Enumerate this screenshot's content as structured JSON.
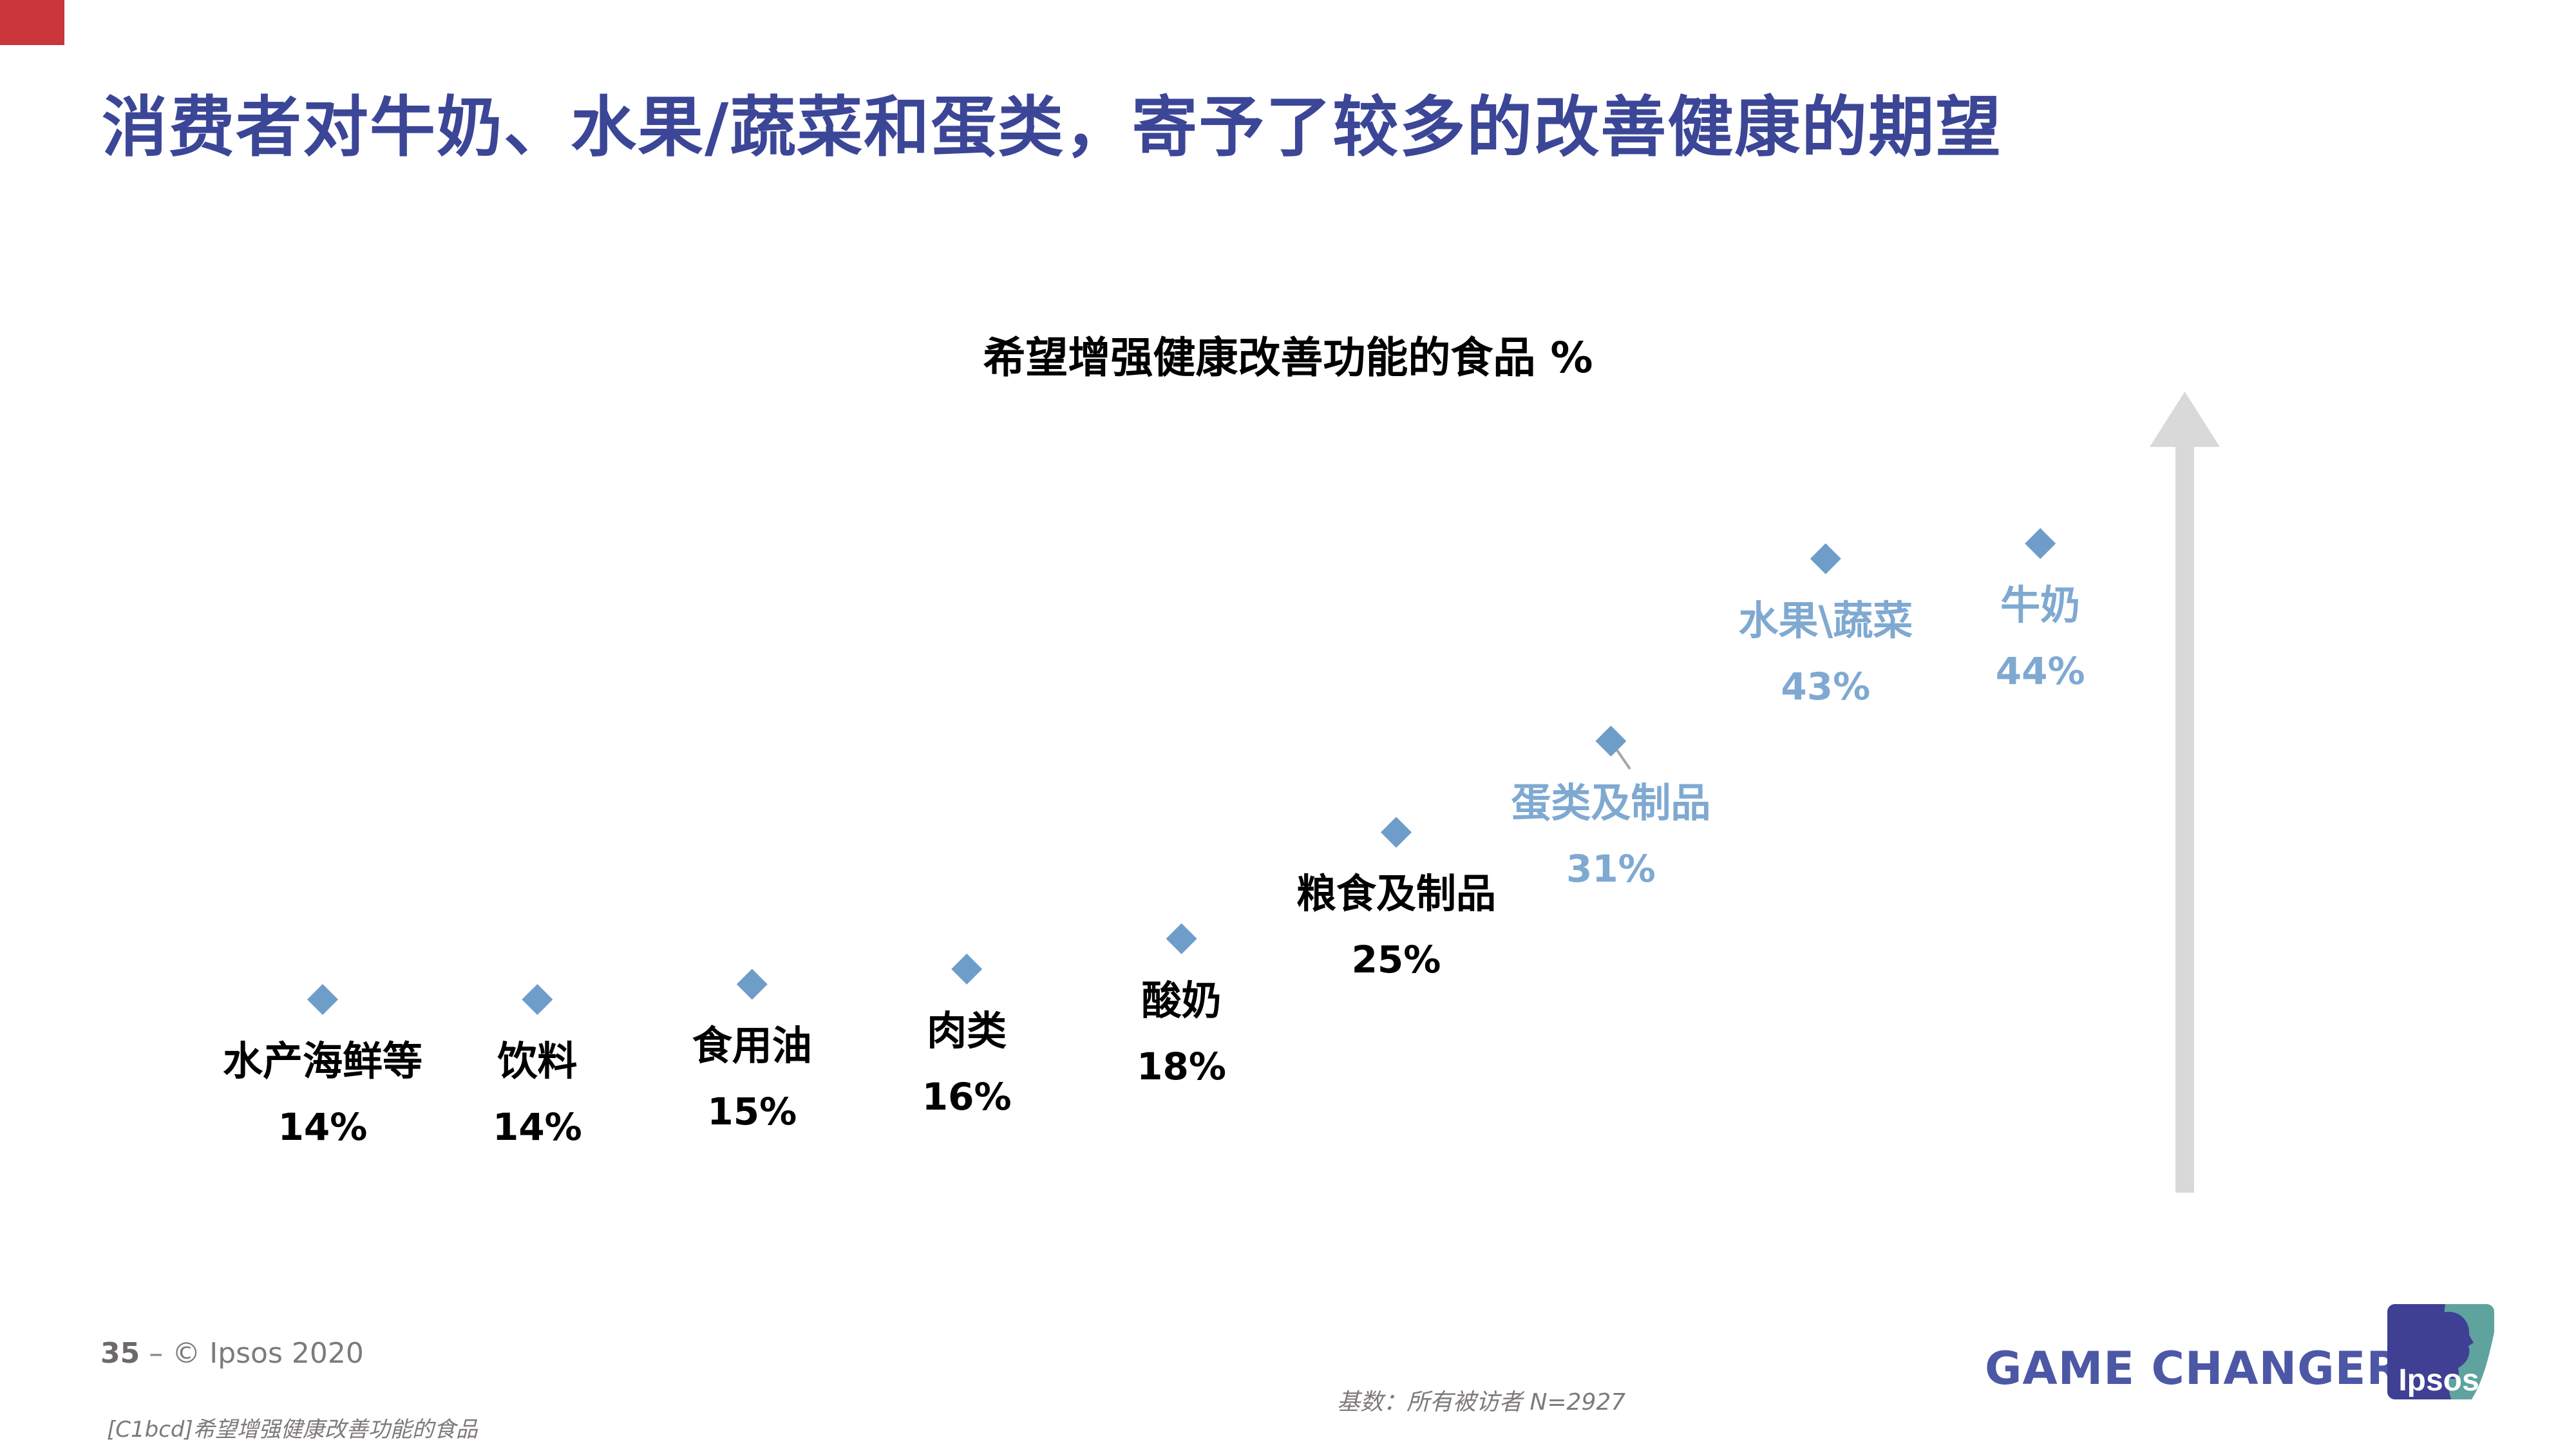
{
  "slide": {
    "title": "消费者对牛奶、水果/蔬菜和蛋类，寄予了较多的改善健康的期望",
    "title_color": "#3B4697",
    "corner_accent_color": "#C9363C"
  },
  "chart_data": {
    "type": "scatter",
    "title": "希望增强健康改善功能的食品 %",
    "value_suffix": "%",
    "marker": "diamond",
    "marker_color": "#6F9DC9",
    "highlight_text_color": "#7FA9D1",
    "normal_text_color": "#000000",
    "arrow_color": "#D9D9D9",
    "leader_line_color": "#A6A6A6",
    "legend": "none",
    "grid": false,
    "points": [
      {
        "label": "水产海鲜等",
        "value": 14,
        "highlight": false
      },
      {
        "label": "饮料",
        "value": 14,
        "highlight": false
      },
      {
        "label": "食用油",
        "value": 15,
        "highlight": false
      },
      {
        "label": "肉类",
        "value": 16,
        "highlight": false
      },
      {
        "label": "酸奶",
        "value": 18,
        "highlight": false
      },
      {
        "label": "粮食及制品",
        "value": 25,
        "highlight": false
      },
      {
        "label": "蛋类及制品",
        "value": 31,
        "highlight": true
      },
      {
        "label": "水果\\蔬菜",
        "value": 43,
        "highlight": true
      },
      {
        "label": "牛奶",
        "value": 44,
        "highlight": true
      }
    ]
  },
  "footer": {
    "page_number": "35",
    "separator": "–",
    "copyright": "© Ipsos 2020",
    "source_note": "[C1bcd]希望增强健康改善功能的食品",
    "base_note": "基数：所有被访者  N=2927",
    "brand": "GAME CHANGERS",
    "brand_color": "#4C58A5",
    "logo": {
      "text": "Ipsos",
      "blue": "#3F3F94",
      "teal": "#5EA39D"
    }
  }
}
